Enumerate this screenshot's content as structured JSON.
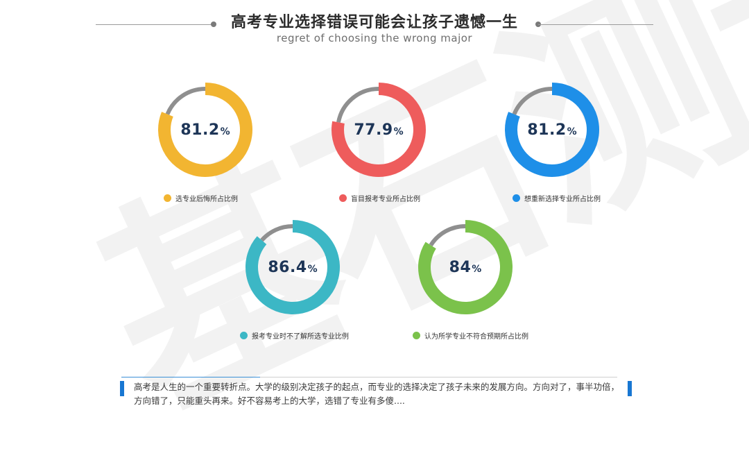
{
  "header": {
    "title": "高考专业选择错误可能会让孩子遗憾一生",
    "subtitle": "regret of choosing the wrong major"
  },
  "watermark": "基石测评",
  "colors": {
    "track": "#8f8f8f",
    "yellow": "#f2b531",
    "red": "#ee5c5c",
    "blue": "#1e8fe8",
    "teal": "#3cb7c5",
    "green": "#7bc24b",
    "value_text": "#1d3557"
  },
  "chart_data": [
    {
      "type": "pie",
      "values": [
        81.2,
        18.8
      ],
      "value_label": "81.2",
      "unit": "%",
      "label": "选专业后悔所占比例",
      "color": "#f2b531"
    },
    {
      "type": "pie",
      "values": [
        77.9,
        22.1
      ],
      "value_label": "77.9",
      "unit": "%",
      "label": "盲目报考专业所占比例",
      "color": "#ee5c5c"
    },
    {
      "type": "pie",
      "values": [
        81.2,
        18.8
      ],
      "value_label": "81.2",
      "unit": "%",
      "label": "想重新选择专业所占比例",
      "color": "#1e8fe8"
    },
    {
      "type": "pie",
      "values": [
        86.4,
        13.6
      ],
      "value_label": "86.4",
      "unit": "%",
      "label": "报考专业时不了解所选专业比例",
      "color": "#3cb7c5"
    },
    {
      "type": "pie",
      "values": [
        84,
        16
      ],
      "value_label": "84",
      "unit": "%",
      "label": "认为所学专业不符合预期所占比例",
      "color": "#7bc24b"
    }
  ],
  "quote": {
    "line1": "高考是人生的一个重要转折点。大学的级别决定孩子的起点，而专业的选择决定了孩子未来的发展方向。方向对了，事半功倍，",
    "line2": "方向错了，只能重头再来。好不容易考上的大学，选错了专业有多傻...."
  }
}
